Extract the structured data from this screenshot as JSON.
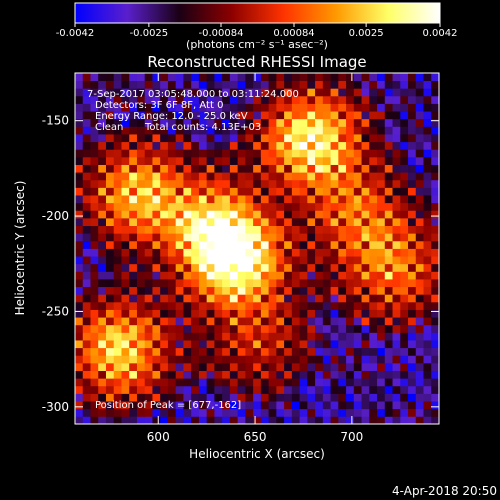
{
  "chart_data": {
    "type": "heatmap",
    "title": "Reconstructed RHESSI Image",
    "xlabel": "Heliocentric X (arcsec)",
    "ylabel": "Heliocentric Y (arcsec)",
    "xlim": [
      557,
      745
    ],
    "ylim": [
      -309,
      -125
    ],
    "xticks": [
      600,
      650,
      700
    ],
    "yticks": [
      -150,
      -200,
      -250,
      -300
    ],
    "colorbar": {
      "min": -0.0042,
      "max": 0.0042,
      "ticks": [
        "-0.0042",
        "-0.0025",
        "-0.00084",
        "0.00084",
        "0.0025",
        "0.0042"
      ],
      "label": "(photons cm⁻² s⁻¹ asec⁻²)",
      "colors": [
        "#0000ff",
        "#5a1fcc",
        "#1a0014",
        "#8b0000",
        "#ff3300",
        "#ff9900",
        "#ffff66",
        "#ffffff"
      ]
    },
    "annotations": [
      "7-Sep-2017 03:05:48.000 to 03:11:24.000",
      "Detectors: 3F 6F 8F, Att 0",
      "Energy Range: 12.0 - 25.0 keV",
      "Clean",
      "Total counts: 4.13E+03"
    ],
    "peak_label": "Position of Peak = [677,-162]",
    "peak": [
      677,
      -162
    ],
    "footer_date": "4-Apr-2018 20:50",
    "sources": [
      {
        "x": 677,
        "y": -162,
        "intensity": 1.0
      },
      {
        "x": 628,
        "y": -210,
        "intensity": 0.92
      },
      {
        "x": 640,
        "y": -228,
        "intensity": 0.85
      },
      {
        "x": 588,
        "y": -190,
        "intensity": 0.8
      },
      {
        "x": 578,
        "y": -272,
        "intensity": 0.88
      },
      {
        "x": 720,
        "y": -230,
        "intensity": 0.6
      },
      {
        "x": 700,
        "y": -200,
        "intensity": 0.55
      },
      {
        "x": 650,
        "y": -270,
        "intensity": 0.35
      }
    ]
  }
}
